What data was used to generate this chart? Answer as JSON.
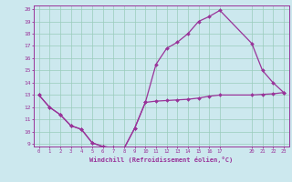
{
  "bg_color": "#cce8ee",
  "line_color": "#993399",
  "grid_color": "#99ccbb",
  "xlim": [
    -0.5,
    23.5
  ],
  "ylim": [
    8.8,
    20.3
  ],
  "xticks": [
    0,
    1,
    2,
    3,
    4,
    5,
    6,
    7,
    8,
    9,
    10,
    11,
    12,
    13,
    14,
    15,
    16,
    17,
    20,
    21,
    22,
    23
  ],
  "yticks": [
    9,
    10,
    11,
    12,
    13,
    14,
    15,
    16,
    17,
    18,
    19,
    20
  ],
  "xlabel": "Windchill (Refroidissement éolien,°C)",
  "line1_x": [
    0,
    1,
    2,
    3,
    4,
    5,
    6,
    7,
    8,
    9,
    10,
    11,
    12,
    13,
    14,
    15,
    16,
    17,
    20,
    21,
    22,
    23
  ],
  "line1_y": [
    13,
    12,
    11.4,
    10.5,
    10.2,
    9.1,
    8.8,
    8.7,
    8.65,
    10.3,
    12.4,
    15.5,
    16.8,
    17.3,
    18.0,
    19.0,
    19.4,
    19.9,
    17.2,
    15.0,
    14.0,
    13.2
  ],
  "line2_x": [
    0,
    1,
    2,
    3,
    4,
    5,
    6,
    7,
    8,
    9,
    10,
    11,
    12,
    13,
    14,
    15,
    16,
    17,
    20,
    21,
    22,
    23
  ],
  "line2_y": [
    13,
    12,
    11.4,
    10.5,
    10.2,
    9.1,
    8.8,
    8.7,
    8.65,
    10.3,
    12.4,
    12.5,
    12.55,
    12.6,
    12.65,
    12.75,
    12.9,
    13.0,
    13.0,
    13.05,
    13.1,
    13.2
  ]
}
